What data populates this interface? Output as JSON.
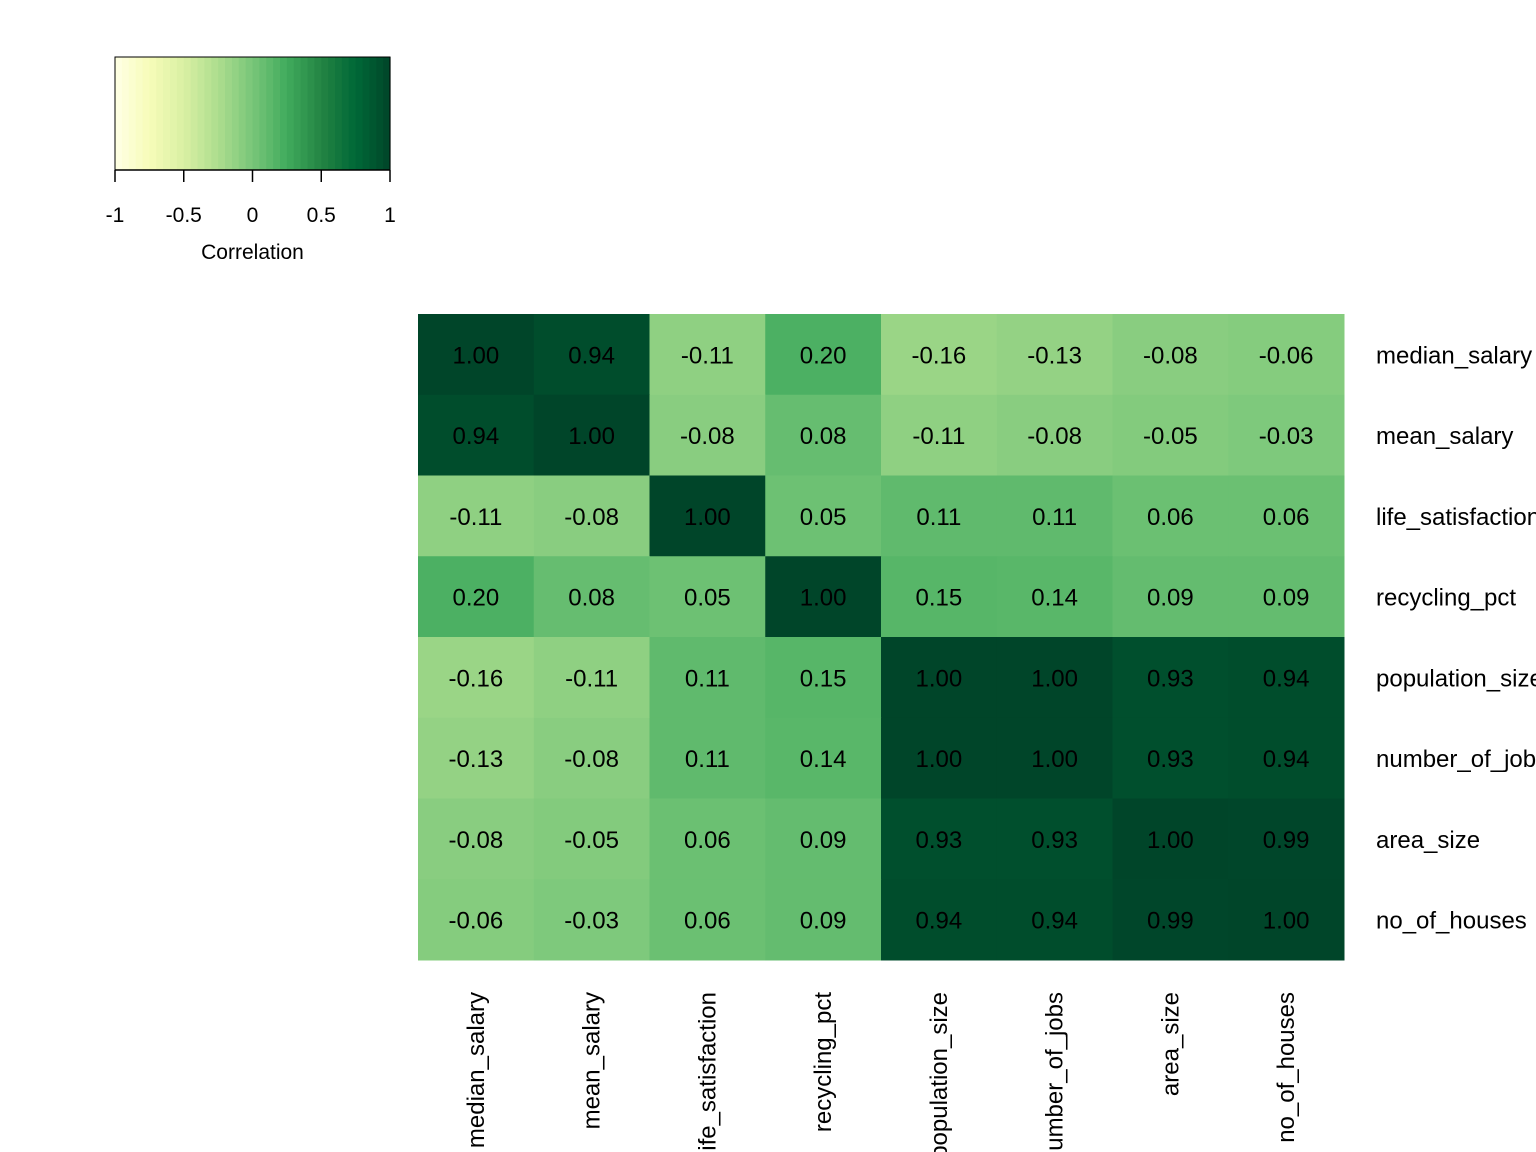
{
  "chart_data": {
    "type": "heatmap",
    "variables": [
      "median_salary",
      "mean_salary",
      "life_satisfaction",
      "recycling_pct",
      "population_size",
      "number_of_jobs",
      "area_size",
      "no_of_houses"
    ],
    "matrix": [
      [
        1.0,
        0.94,
        -0.11,
        0.2,
        -0.16,
        -0.13,
        -0.08,
        -0.06
      ],
      [
        0.94,
        1.0,
        -0.08,
        0.08,
        -0.11,
        -0.08,
        -0.05,
        -0.03
      ],
      [
        -0.11,
        -0.08,
        1.0,
        0.05,
        0.11,
        0.11,
        0.06,
        0.06
      ],
      [
        0.2,
        0.08,
        0.05,
        1.0,
        0.15,
        0.14,
        0.09,
        0.09
      ],
      [
        -0.16,
        -0.11,
        0.11,
        0.15,
        1.0,
        1.0,
        0.93,
        0.94
      ],
      [
        -0.13,
        -0.08,
        0.11,
        0.14,
        1.0,
        1.0,
        0.93,
        0.94
      ],
      [
        -0.08,
        -0.05,
        0.06,
        0.09,
        0.93,
        0.93,
        1.0,
        0.99
      ],
      [
        -0.06,
        -0.03,
        0.06,
        0.09,
        0.94,
        0.94,
        0.99,
        1.0
      ]
    ],
    "cell_labels": [
      [
        "1.00",
        "0.94",
        "-0.11",
        "0.20",
        "-0.16",
        "-0.13",
        "-0.08",
        "-0.06"
      ],
      [
        "0.94",
        "1.00",
        "-0.08",
        "0.08",
        "-0.11",
        "-0.08",
        "-0.05",
        "-0.03"
      ],
      [
        "-0.11",
        "-0.08",
        "1.00",
        "0.05",
        "0.11",
        "0.11",
        "0.06",
        "0.06"
      ],
      [
        "0.20",
        "0.08",
        "0.05",
        "1.00",
        "0.15",
        "0.14",
        "0.09",
        "0.09"
      ],
      [
        "-0.16",
        "-0.11",
        "0.11",
        "0.15",
        "1.00",
        "1.00",
        "0.93",
        "0.94"
      ],
      [
        "-0.13",
        "-0.08",
        "0.11",
        "0.14",
        "1.00",
        "1.00",
        "0.93",
        "0.94"
      ],
      [
        "-0.08",
        "-0.05",
        "0.06",
        "0.09",
        "0.93",
        "0.93",
        "1.00",
        "0.99"
      ],
      [
        "-0.06",
        "-0.03",
        "0.06",
        "0.09",
        "0.94",
        "0.94",
        "0.99",
        "1.00"
      ]
    ],
    "colorbar": {
      "title": "Correlation",
      "range": [
        -1,
        1
      ],
      "ticks": [
        -1,
        -0.5,
        0,
        0.5,
        1
      ],
      "tick_labels": [
        "-1",
        "-0.5",
        "0",
        "0.5",
        "1"
      ],
      "colors": [
        "#ffffe5",
        "#f7fcb9",
        "#d9f0a3",
        "#addd8e",
        "#78c679",
        "#41ab5d",
        "#238443",
        "#006837",
        "#004529"
      ]
    },
    "legend_position": "top-left",
    "row_labels_position": "right",
    "col_labels_position": "bottom",
    "col_label_rotation": "vertical"
  }
}
